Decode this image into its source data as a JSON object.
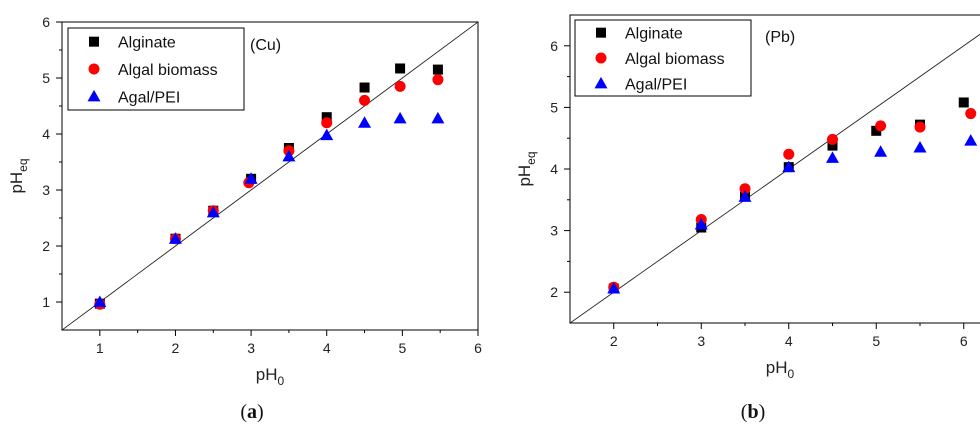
{
  "chart_data": [
    {
      "type": "scatter",
      "annotation": "(Cu)",
      "caption": {
        "open": "(",
        "letter": "a",
        "close": ")"
      },
      "xlabel": "pH",
      "xlabel_sub": "0",
      "ylabel": "pH",
      "ylabel_sub": "eq",
      "xlim": [
        0.5,
        6
      ],
      "ylim": [
        0.5,
        6
      ],
      "xticks": [
        1,
        2,
        3,
        4,
        5,
        6
      ],
      "yticks": [
        1,
        2,
        3,
        4,
        5,
        6
      ],
      "reference_line": "y = x",
      "legend_position": "top-left",
      "series": [
        {
          "name": "Alginate",
          "marker": "square",
          "color": "#000000",
          "x": [
            1.0,
            2.0,
            2.5,
            3.0,
            3.5,
            4.0,
            4.5,
            4.97,
            5.47
          ],
          "y": [
            0.97,
            2.13,
            2.63,
            3.2,
            3.75,
            4.3,
            4.83,
            5.17,
            5.15
          ]
        },
        {
          "name": "Algal biomass",
          "marker": "circle",
          "color": "#ff0000",
          "x": [
            1.0,
            2.0,
            2.5,
            2.97,
            3.5,
            4.0,
            4.5,
            4.97,
            5.47
          ],
          "y": [
            0.96,
            2.13,
            2.63,
            3.13,
            3.7,
            4.2,
            4.6,
            4.85,
            4.97
          ]
        },
        {
          "name": "Agal/PEI",
          "marker": "triangle",
          "color": "#0000ff",
          "x": [
            1.0,
            2.0,
            2.5,
            3.0,
            3.5,
            4.0,
            4.5,
            4.97,
            5.47
          ],
          "y": [
            1.0,
            2.13,
            2.6,
            3.2,
            3.6,
            3.98,
            4.2,
            4.28,
            4.28
          ]
        }
      ]
    },
    {
      "type": "scatter",
      "annotation": "(Pb)",
      "caption": {
        "open": "(",
        "letter": "b",
        "close": ")"
      },
      "xlabel": "pH",
      "xlabel_sub": "0",
      "ylabel": "pH",
      "ylabel_sub": "eq",
      "xlim": [
        1.5,
        6.3
      ],
      "ylim": [
        1.5,
        6.5
      ],
      "xticks": [
        2,
        3,
        4,
        5,
        6
      ],
      "yticks": [
        2,
        3,
        4,
        5,
        6
      ],
      "reference_line": "y = x",
      "legend_position": "top-left",
      "series": [
        {
          "name": "Alginate",
          "marker": "square",
          "color": "#000000",
          "x": [
            2.0,
            3.0,
            3.5,
            4.0,
            4.5,
            5.0,
            5.5,
            6.0
          ],
          "y": [
            2.06,
            3.05,
            3.55,
            4.03,
            4.38,
            4.62,
            4.72,
            5.08
          ]
        },
        {
          "name": "Algal biomass",
          "marker": "circle",
          "color": "#ff0000",
          "x": [
            2.0,
            3.0,
            3.5,
            4.0,
            4.5,
            5.05,
            5.5,
            6.08
          ],
          "y": [
            2.08,
            3.18,
            3.68,
            4.24,
            4.48,
            4.7,
            4.68,
            4.9
          ]
        },
        {
          "name": "Agal/PEI",
          "marker": "triangle",
          "color": "#0000ff",
          "x": [
            2.0,
            3.0,
            3.5,
            4.0,
            4.5,
            5.05,
            5.5,
            6.08
          ],
          "y": [
            2.06,
            3.1,
            3.55,
            4.03,
            4.18,
            4.28,
            4.35,
            4.46
          ]
        }
      ]
    }
  ]
}
